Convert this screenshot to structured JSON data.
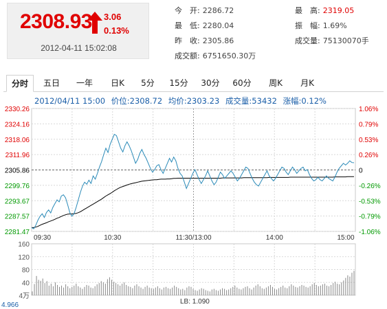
{
  "quote": {
    "price": "2308.93",
    "change": "3.06",
    "change_pct": "0.13%",
    "time": "2012-04-11 15:02:08"
  },
  "stats": {
    "open_label": "今　开:",
    "open": "2286.72",
    "low_label": "最　低:",
    "low": "2280.04",
    "prev_close_label": "昨　收:",
    "prev_close": "2305.86",
    "amount_label": "成交额:",
    "amount": "6751650.30万",
    "high_label": "最　高:",
    "high": "2319.05",
    "amplitude_label": "振　幅:",
    "amplitude": "1.69%",
    "volume_label": "成交量:",
    "volume": "75130070手"
  },
  "tabs": [
    "分时",
    "五日",
    "一年",
    "日K",
    "5分",
    "15分",
    "30分",
    "60分",
    "周K",
    "月K"
  ],
  "info": {
    "datetime": "2012/04/11 15:00",
    "price": "价位:2308.72",
    "avg": "均价:2303.23",
    "volume": "成交量:53432",
    "change": "涨幅:0.12%"
  },
  "colors": {
    "up": "#e00000",
    "down": "#009900",
    "price_line": "#2a8ab8",
    "avg_line": "#000000"
  },
  "chart_data": {
    "type": "line",
    "y_left_ticks": [
      "2330.26",
      "2324.16",
      "2318.06",
      "2311.96",
      "2305.86",
      "2299.76",
      "2293.67",
      "2287.57",
      "2281.47"
    ],
    "y_right_ticks": [
      "1.06%",
      "0.79%",
      "0.53%",
      "0.26%",
      "0",
      "-0.26%",
      "-0.53%",
      "-0.79%",
      "-1.06%"
    ],
    "x_ticks": [
      "09:30",
      "10:30",
      "11:30/13:00",
      "14:00",
      "15:00"
    ],
    "ylim": [
      2281.47,
      2330.26
    ],
    "series": [
      {
        "values": [
          2283.0,
          2282.5,
          2284.0,
          2286.0,
          2287.5,
          2288.5,
          2287.0,
          2289.0,
          2290.0,
          2288.8,
          2291.0,
          2292.5,
          2294.0,
          2293.2,
          2295.5,
          2296.0,
          2294.8,
          2292.0,
          2289.0,
          2287.5,
          2288.5,
          2291.0,
          2294.0,
          2297.0,
          2299.5,
          2301.0,
          2300.2,
          2301.8,
          2300.5,
          2303.5,
          2302.2,
          2304.5,
          2307.0,
          2309.2,
          2312.0,
          2314.5,
          2312.8,
          2316.0,
          2318.0,
          2320.0,
          2319.5,
          2317.0,
          2314.5,
          2313.0,
          2315.5,
          2317.0,
          2315.5,
          2313.5,
          2311.0,
          2308.5,
          2310.0,
          2312.5,
          2314.0,
          2312.0,
          2310.5,
          2308.5,
          2306.5,
          2305.0,
          2306.0,
          2307.5,
          2308.0,
          2306.0,
          2304.5,
          2306.5,
          2308.5,
          2310.5,
          2309.0,
          2311.0,
          2309.5,
          2306.5,
          2304.5,
          2303.5,
          2301.0,
          2298.5,
          2300.5,
          2302.5,
          2304.5,
          2306.0,
          2304.0,
          2302.0,
          2300.5,
          2302.0,
          2303.5,
          2305.5,
          2303.5,
          2301.5,
          2300.0,
          2301.0,
          2303.0,
          2305.0,
          2304.0,
          2302.5,
          2303.5,
          2304.5,
          2305.5,
          2304.5,
          2303.0,
          2301.5,
          2302.5,
          2304.0,
          2305.5,
          2307.0,
          2306.5,
          2304.5,
          2302.5,
          2301.0,
          2300.0,
          2299.5,
          2301.0,
          2302.5,
          2304.0,
          2305.5,
          2303.5,
          2302.5,
          2301.5,
          2302.5,
          2304.0,
          2305.5,
          2307.0,
          2306.5,
          2305.0,
          2304.0,
          2305.5,
          2307.0,
          2306.0,
          2304.5,
          2305.5,
          2306.5,
          2307.0,
          2305.5,
          2306.0,
          2304.0,
          2302.5,
          2301.5,
          2302.0,
          2303.0,
          2302.0,
          2301.5,
          2302.5,
          2303.5,
          2302.5,
          2302.0,
          2301.5,
          2303.0,
          2305.0,
          2306.5,
          2307.5,
          2308.5,
          2307.8,
          2308.5,
          2309.5,
          2308.8,
          2308.72
        ],
        "color": "#2a8ab8"
      },
      {
        "values": [
          2283.0,
          2283.0,
          2283.2,
          2283.5,
          2283.9,
          2284.3,
          2284.6,
          2284.9,
          2285.3,
          2285.6,
          2285.9,
          2286.3,
          2286.7,
          2287.0,
          2287.4,
          2287.8,
          2288.1,
          2288.3,
          2288.4,
          2288.4,
          2288.5,
          2288.6,
          2288.9,
          2289.3,
          2289.8,
          2290.3,
          2290.8,
          2291.3,
          2291.8,
          2292.3,
          2292.8,
          2293.3,
          2293.8,
          2294.3,
          2294.9,
          2295.5,
          2296.0,
          2296.5,
          2297.0,
          2297.6,
          2298.1,
          2298.6,
          2299.0,
          2299.3,
          2299.6,
          2299.9,
          2300.2,
          2300.4,
          2300.6,
          2300.8,
          2301.0,
          2301.2,
          2301.4,
          2301.5,
          2301.6,
          2301.7,
          2301.8,
          2301.9,
          2302.0,
          2302.0,
          2302.1,
          2302.2,
          2302.2,
          2302.2,
          2302.3,
          2302.3,
          2302.4,
          2302.5,
          2302.5,
          2302.6,
          2302.6,
          2302.6,
          2302.6,
          2302.6,
          2302.6,
          2302.6,
          2302.6,
          2302.6,
          2302.6,
          2302.6,
          2302.6,
          2302.6,
          2302.6,
          2302.6,
          2302.6,
          2302.6,
          2302.6,
          2302.6,
          2302.6,
          2302.6,
          2302.7,
          2302.7,
          2302.7,
          2302.7,
          2302.7,
          2302.7,
          2302.7,
          2302.7,
          2302.7,
          2302.7,
          2302.8,
          2302.8,
          2302.8,
          2302.8,
          2302.8,
          2302.8,
          2302.8,
          2302.8,
          2302.8,
          2302.8,
          2302.8,
          2302.8,
          2302.9,
          2302.9,
          2302.9,
          2302.9,
          2302.9,
          2302.9,
          2302.9,
          2302.9,
          2302.9,
          2302.9,
          2303.0,
          2303.0,
          2303.0,
          2303.0,
          2303.0,
          2303.0,
          2303.0,
          2303.0,
          2303.0,
          2303.0,
          2303.0,
          2303.0,
          2303.0,
          2303.0,
          2303.0,
          2303.0,
          2303.0,
          2303.0,
          2303.0,
          2303.0,
          2303.0,
          2303.1,
          2303.1,
          2303.1,
          2303.1,
          2303.1,
          2303.1,
          2303.2,
          2303.2,
          2303.2,
          2303.23
        ],
        "color": "#000000"
      }
    ],
    "volume": {
      "y_ticks": [
        "160",
        "120",
        "80",
        "40",
        "4万"
      ],
      "ylim": [
        0,
        160
      ],
      "values": [
        12,
        35,
        60,
        48,
        45,
        52,
        38,
        44,
        30,
        36,
        28,
        40,
        32,
        26,
        30,
        24,
        34,
        28,
        22,
        26,
        30,
        36,
        28,
        24,
        20,
        26,
        32,
        30,
        24,
        22,
        28,
        34,
        38,
        44,
        40,
        36,
        50,
        56,
        48,
        42,
        38,
        34,
        30,
        36,
        40,
        32,
        28,
        26,
        22,
        30,
        34,
        28,
        24,
        20,
        26,
        30,
        24,
        22,
        20,
        24,
        28,
        22,
        18,
        24,
        26,
        22,
        20,
        24,
        30,
        26,
        22,
        18,
        20,
        16,
        24,
        28,
        26,
        20,
        16,
        14,
        18,
        22,
        20,
        16,
        14,
        12,
        18,
        20,
        16,
        14,
        18,
        22,
        20,
        16,
        18,
        22,
        26,
        30,
        24,
        20,
        18,
        22,
        26,
        28,
        22,
        18,
        24,
        30,
        34,
        28,
        22,
        20,
        24,
        28,
        32,
        26,
        20,
        18,
        22,
        26,
        30,
        24,
        22,
        28,
        34,
        30,
        26,
        24,
        28,
        32,
        30,
        26,
        24,
        28,
        34,
        38,
        32,
        28,
        30,
        34,
        36,
        30,
        28,
        32,
        38,
        42,
        36,
        34,
        40,
        46,
        54,
        62,
        58,
        70,
        76
      ],
      "label": "LB: 1.090",
      "bottom_label": "4.966"
    }
  }
}
